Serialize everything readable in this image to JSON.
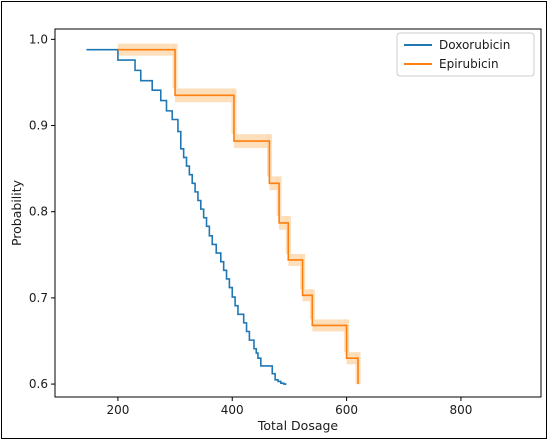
{
  "chart_data": {
    "type": "line",
    "title": "",
    "xlabel": "Total Dosage",
    "ylabel": "Probability",
    "xlim": [
      90,
      940
    ],
    "ylim": [
      0.585,
      1.012
    ],
    "xticks": [
      200,
      400,
      600,
      800
    ],
    "yticks": [
      0.6,
      0.7,
      0.8,
      0.9,
      1.0
    ],
    "xtick_labels": [
      "200",
      "400",
      "600",
      "800"
    ],
    "ytick_labels": [
      "0.6",
      "0.7",
      "0.8",
      "0.9",
      "1.0"
    ],
    "grid": false,
    "legend_position": "top-right",
    "series": [
      {
        "name": "Doxorubicin",
        "color": "#1f77b4",
        "step": true,
        "ci": false,
        "x": [
          145,
          200,
          230,
          240,
          260,
          275,
          285,
          295,
          305,
          310,
          315,
          320,
          325,
          330,
          335,
          340,
          345,
          350,
          355,
          360,
          365,
          372,
          380,
          385,
          390,
          395,
          400,
          405,
          410,
          420,
          425,
          430,
          438,
          442,
          445,
          450,
          470,
          475,
          480,
          485,
          490,
          495
        ],
        "y": [
          0.988,
          0.976,
          0.964,
          0.952,
          0.941,
          0.929,
          0.917,
          0.907,
          0.893,
          0.873,
          0.863,
          0.853,
          0.843,
          0.833,
          0.823,
          0.813,
          0.803,
          0.793,
          0.783,
          0.772,
          0.762,
          0.752,
          0.742,
          0.732,
          0.722,
          0.712,
          0.701,
          0.691,
          0.681,
          0.671,
          0.661,
          0.651,
          0.641,
          0.636,
          0.63,
          0.621,
          0.612,
          0.605,
          0.603,
          0.601,
          0.6,
          0.6
        ]
      },
      {
        "name": "Epirubicin",
        "color": "#ff7f0e",
        "step": true,
        "ci": true,
        "ci_color": "#fdd9b0",
        "x": [
          200,
          300,
          403,
          465,
          482,
          498,
          523,
          540,
          600,
          620
        ],
        "y": [
          0.988,
          0.935,
          0.882,
          0.833,
          0.787,
          0.744,
          0.703,
          0.668,
          0.63,
          0.6
        ],
        "lower": [
          0.981,
          0.927,
          0.874,
          0.825,
          0.779,
          0.737,
          0.696,
          0.661,
          0.623,
          0.6
        ],
        "upper": [
          0.995,
          0.943,
          0.89,
          0.841,
          0.795,
          0.751,
          0.71,
          0.675,
          0.637,
          0.6
        ]
      }
    ]
  }
}
